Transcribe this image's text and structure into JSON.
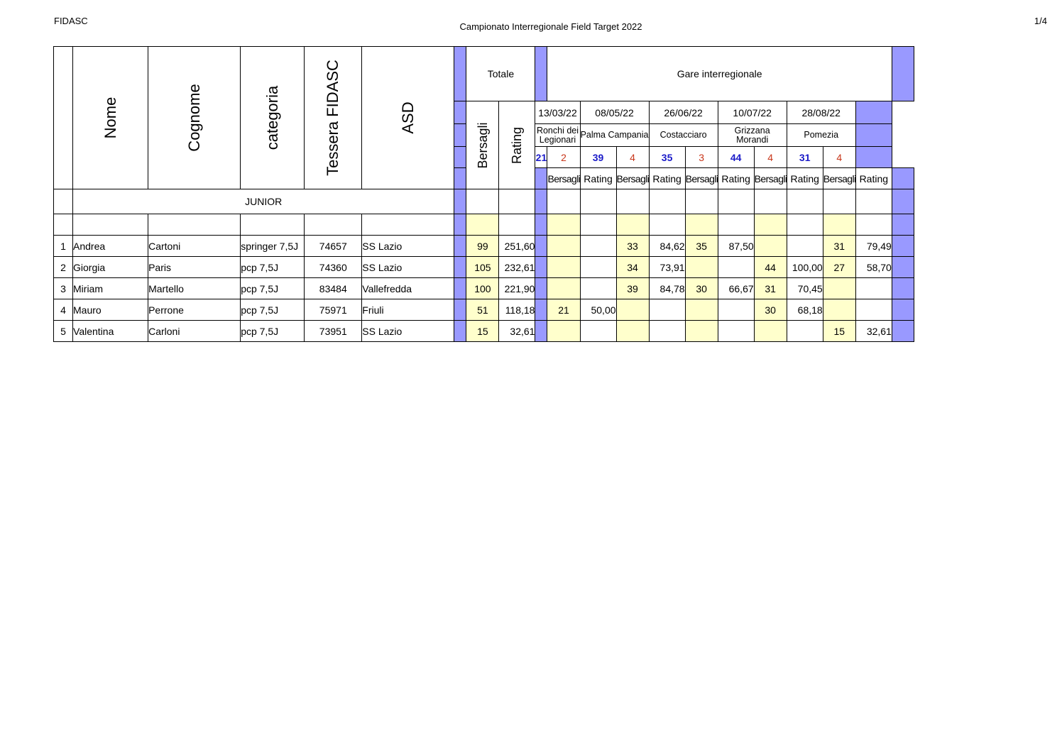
{
  "header": {
    "org": "FIDASC",
    "title": "Campionato Interregionale Field Target 2022",
    "page": "1/4"
  },
  "columns": {
    "nome": "Nome",
    "cognome": "Cognome",
    "categoria": "categoria",
    "tessera": "Tessera FIDASC",
    "asd": "ASD",
    "totale": "Totale",
    "bersagli": "Bersagli",
    "rating": "Rating",
    "gare": "Gare interregionale"
  },
  "events": [
    {
      "date": "13/03/22",
      "venue": "Ronchi dei Legionari",
      "targets": "21",
      "factor": "2",
      "col1": "Bersagli",
      "col2": "Rating"
    },
    {
      "date": "08/05/22",
      "venue": "Palma Campania",
      "targets": "39",
      "factor": "4",
      "col1": "Bersagli",
      "col2": "Rating"
    },
    {
      "date": "26/06/22",
      "venue": "Costacciaro",
      "targets": "35",
      "factor": "3",
      "col1": "Bersagli",
      "col2": "Rating"
    },
    {
      "date": "10/07/22",
      "venue": "Grizzana Morandi",
      "targets": "44",
      "factor": "4",
      "col1": "Bersagli",
      "col2": "Rating"
    },
    {
      "date": "28/08/22",
      "venue": "Pomezia",
      "targets": "31",
      "factor": "4",
      "col1": "Bersagli",
      "col2": "Rating"
    }
  ],
  "section": "JUNIOR",
  "rows": [
    {
      "n": "1",
      "nome": "Andrea",
      "cognome": "Cartoni",
      "categoria": "springer 7,5J",
      "tessera": "74657",
      "asd": "SS Lazio",
      "tot_b": "99",
      "tot_r": "251,60",
      "ev": [
        [
          "",
          ""
        ],
        [
          "33",
          "84,62"
        ],
        [
          "35",
          "87,50"
        ],
        [
          "",
          ""
        ],
        [
          "31",
          "79,49"
        ]
      ]
    },
    {
      "n": "2",
      "nome": "Giorgia",
      "cognome": "Paris",
      "categoria": "pcp 7,5J",
      "tessera": "74360",
      "asd": "SS Lazio",
      "tot_b": "105",
      "tot_r": "232,61",
      "ev": [
        [
          "",
          ""
        ],
        [
          "34",
          "73,91"
        ],
        [
          "",
          ""
        ],
        [
          "44",
          "100,00"
        ],
        [
          "27",
          "58,70"
        ]
      ]
    },
    {
      "n": "3",
      "nome": "Miriam",
      "cognome": "Martello",
      "categoria": "pcp 7,5J",
      "tessera": "83484",
      "asd": "Vallefredda",
      "tot_b": "100",
      "tot_r": "221,90",
      "ev": [
        [
          "",
          ""
        ],
        [
          "39",
          "84,78"
        ],
        [
          "30",
          "66,67"
        ],
        [
          "31",
          "70,45"
        ],
        [
          "",
          ""
        ]
      ]
    },
    {
      "n": "4",
      "nome": "Mauro",
      "cognome": "Perrone",
      "categoria": "pcp 7,5J",
      "tessera": "75971",
      "asd": "Friuli",
      "tot_b": "51",
      "tot_r": "118,18",
      "ev": [
        [
          "21",
          "50,00"
        ],
        [
          "",
          ""
        ],
        [
          "",
          ""
        ],
        [
          "30",
          "68,18"
        ],
        [
          "",
          ""
        ]
      ]
    },
    {
      "n": "5",
      "nome": "Valentina",
      "cognome": "Carloni",
      "categoria": "pcp 7,5J",
      "tessera": "73951",
      "asd": "SS Lazio",
      "tot_b": "15",
      "tot_r": "32,61",
      "ev": [
        [
          "",
          ""
        ],
        [
          "",
          ""
        ],
        [
          "",
          ""
        ],
        [
          "",
          ""
        ],
        [
          "15",
          "32,61"
        ]
      ]
    }
  ]
}
